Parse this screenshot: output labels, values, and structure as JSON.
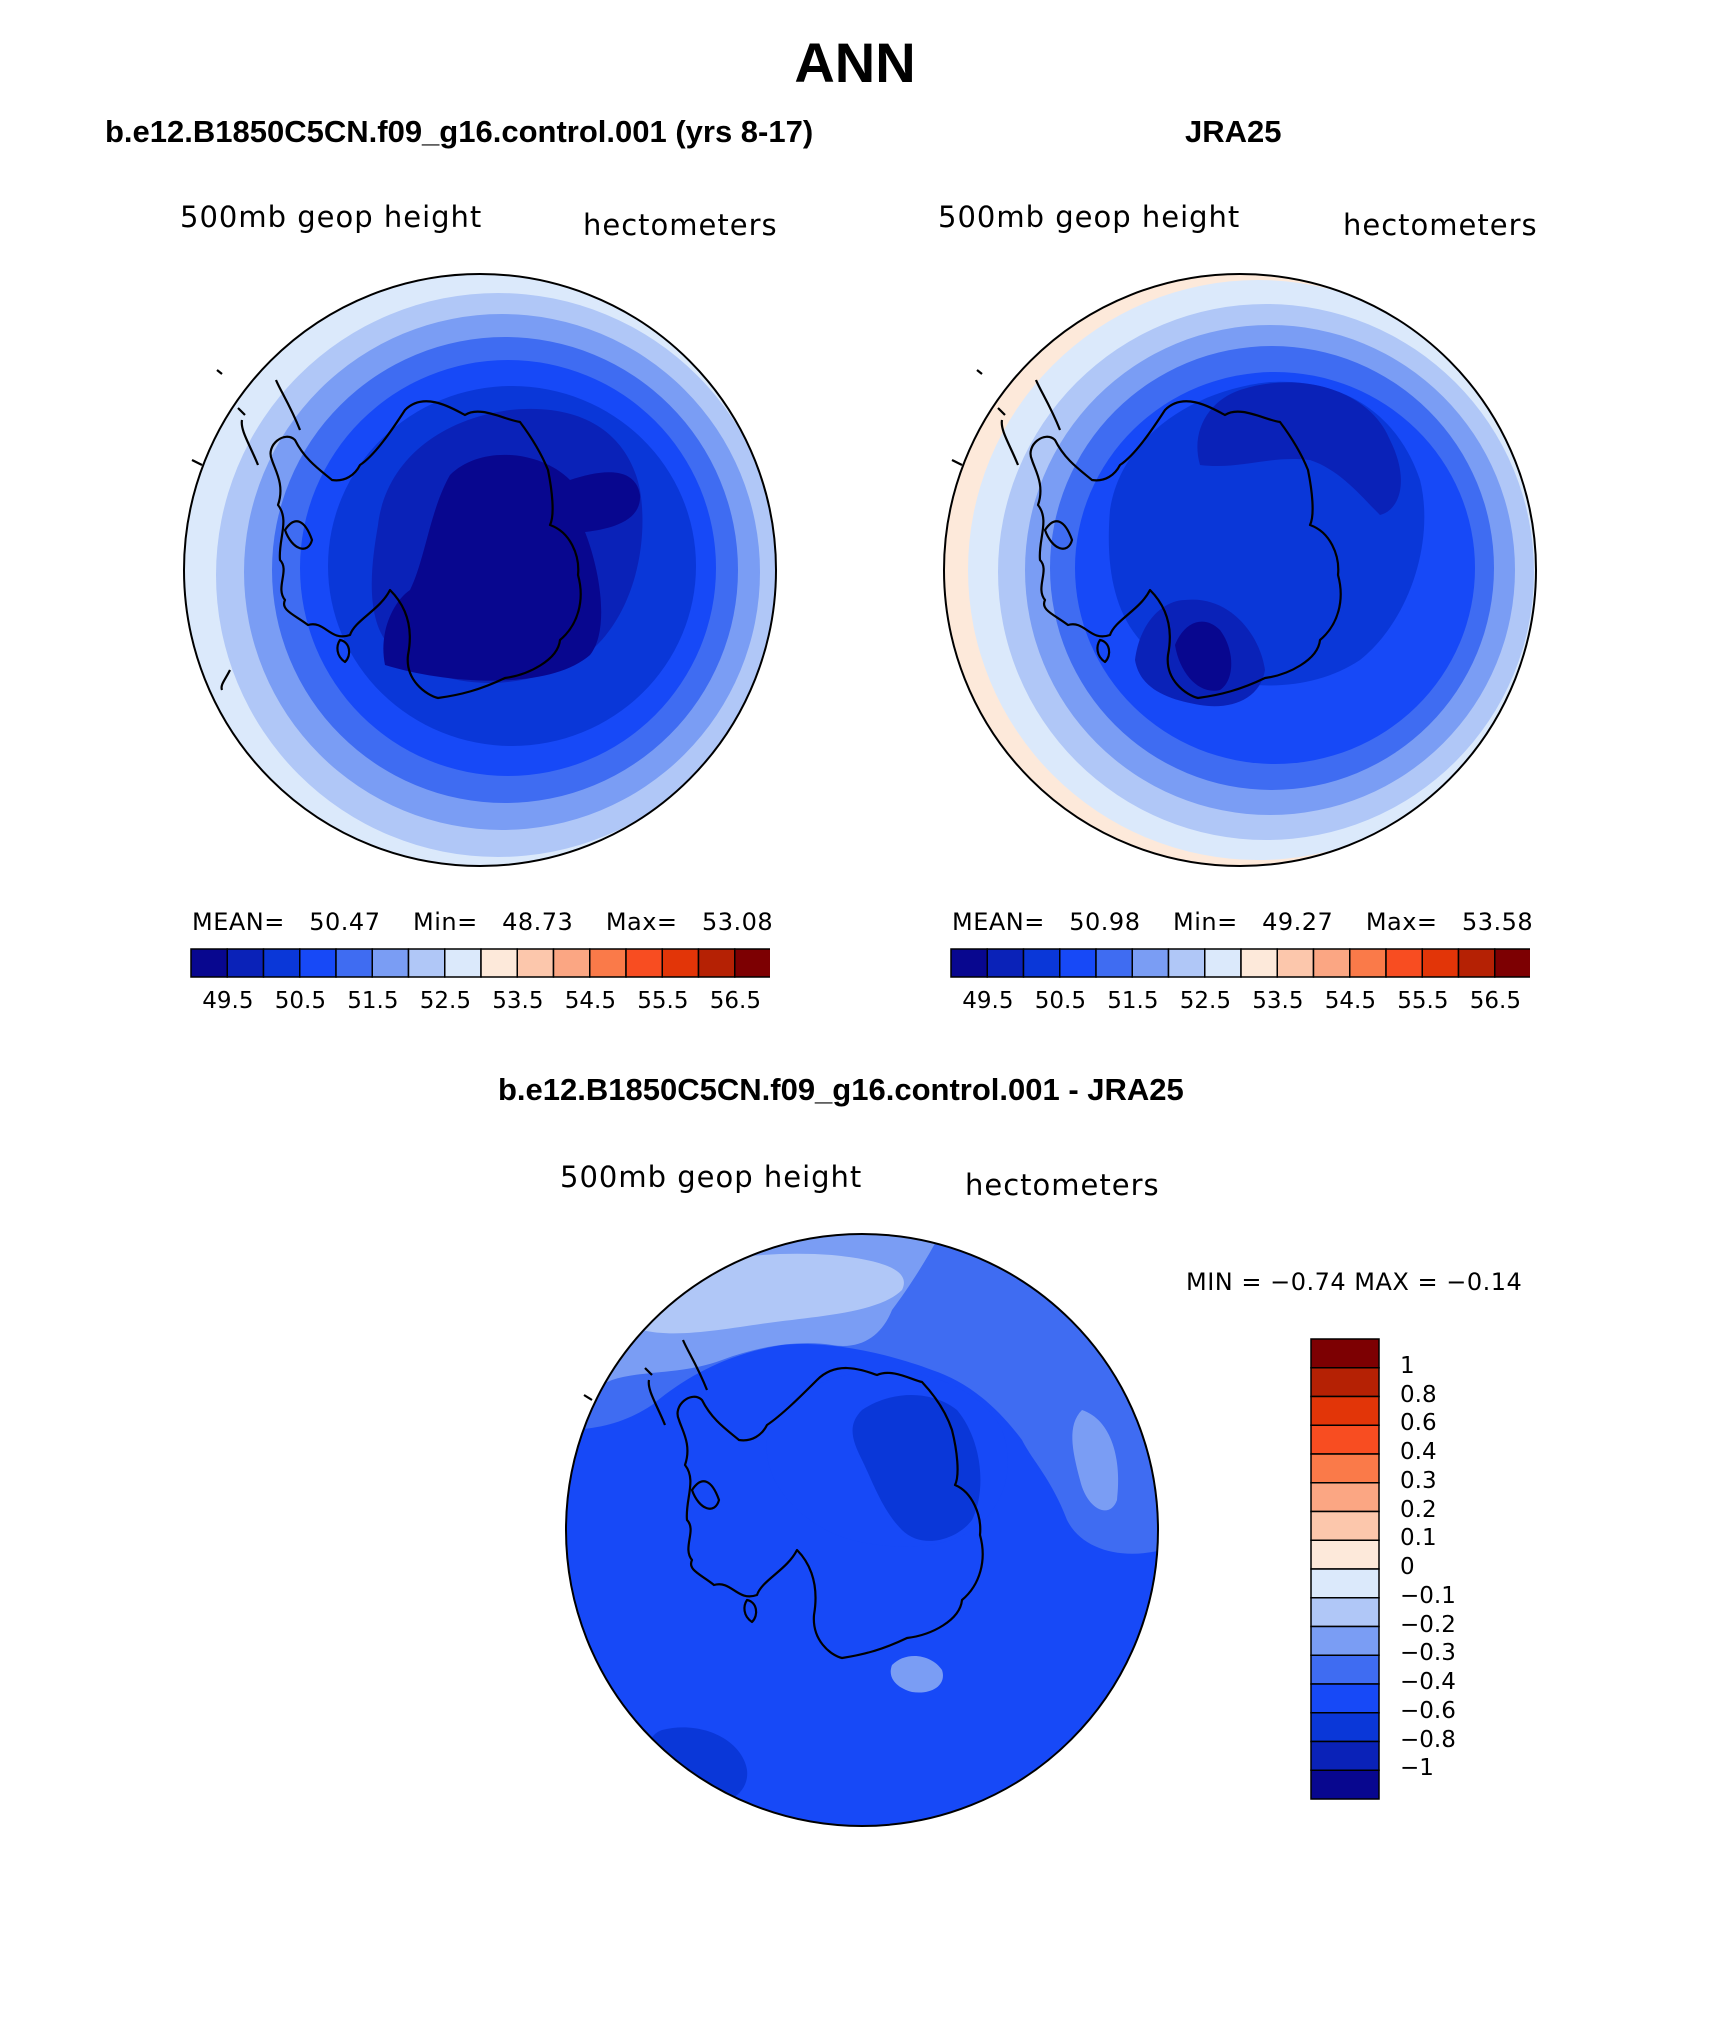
{
  "figure": {
    "title": "ANN",
    "panels": [
      {
        "title": "b.e12.B1850C5CN.f09_g16.control.001 (yrs 8-17)",
        "var_left": "500mb geop height",
        "var_right": "hectometers",
        "stats": {
          "mean_label": "MEAN=",
          "mean": "50.47",
          "min_label": "Min=",
          "min": "48.73",
          "max_label": "Max=",
          "max": "53.08"
        }
      },
      {
        "title": "JRA25",
        "var_left": "500mb geop height",
        "var_right": "hectometers",
        "stats": {
          "mean_label": "MEAN=",
          "mean": "50.98",
          "min_label": "Min=",
          "min": "49.27",
          "max_label": "Max=",
          "max": "53.58"
        }
      },
      {
        "title": "b.e12.B1850C5CN.f09_g16.control.001 - JRA25",
        "var_left": "500mb geop height",
        "var_right": "hectometers",
        "minmax": "MIN =   −0.74  MAX =   −0.14"
      }
    ],
    "colorbar_levels": {
      "colors": [
        "#08078f",
        "#0a22b8",
        "#0a37d8",
        "#1749f7",
        "#3f6cf2",
        "#7a9df4",
        "#b0c7f7",
        "#dbe9fb",
        "#fde9da",
        "#fcc7ac",
        "#fba683",
        "#fa7a49",
        "#f84d21",
        "#e23508",
        "#b52104",
        "#7d0002"
      ],
      "ticks": [
        "49.5",
        "50.5",
        "51.5",
        "52.5",
        "53.5",
        "54.5",
        "55.5",
        "56.5"
      ]
    },
    "diff_colorbar": {
      "colors": [
        "#7d0002",
        "#b52104",
        "#e23508",
        "#f84d21",
        "#fa7a49",
        "#fba683",
        "#fcc7ac",
        "#fde9da",
        "#dbe9fb",
        "#b0c7f7",
        "#7a9df4",
        "#3f6cf2",
        "#1749f7",
        "#0a37d8",
        "#0a22b8",
        "#08078f"
      ],
      "ticks": [
        "1",
        "0.8",
        "0.6",
        "0.4",
        "0.3",
        "0.2",
        "0.1",
        "0",
        "−0.1",
        "−0.2",
        "−0.3",
        "−0.4",
        "−0.6",
        "−0.8",
        "−1"
      ]
    }
  }
}
